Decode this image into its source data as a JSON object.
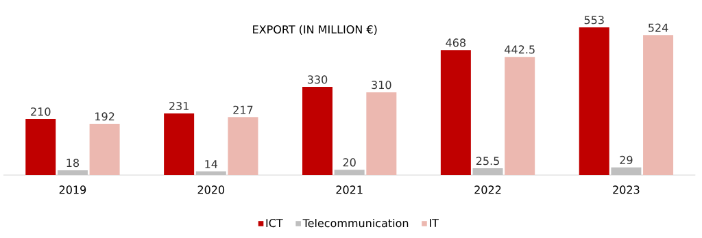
{
  "chart_data": {
    "type": "bar",
    "title": "EXPORT (IN MILLION €)",
    "categories": [
      "2019",
      "2020",
      "2021",
      "2022",
      "2023"
    ],
    "series": [
      {
        "name": "ICT",
        "color": "#c00000",
        "values": [
          210,
          231,
          330,
          468,
          553
        ]
      },
      {
        "name": "Telecommunication",
        "color": "#bfbfbf",
        "values": [
          18,
          14,
          20,
          25.5,
          29
        ]
      },
      {
        "name": "IT",
        "color": "#ecb8b0",
        "values": [
          192,
          217,
          310,
          442.5,
          524
        ]
      }
    ],
    "data_labels": true,
    "legend": "bottom"
  }
}
